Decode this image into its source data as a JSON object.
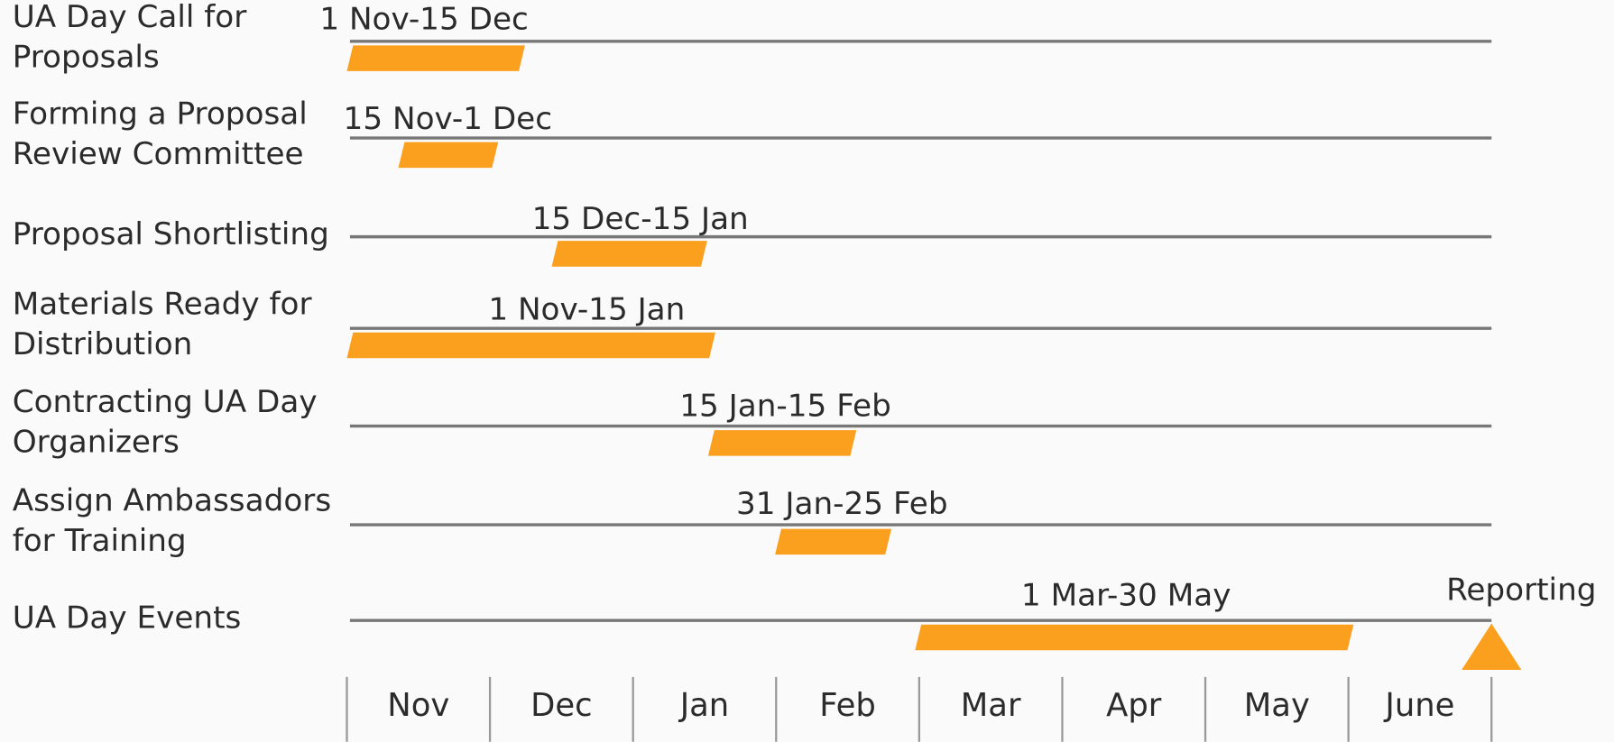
{
  "tasks": [
    {
      "name": [
        "UA Day Call for",
        "Proposals"
      ],
      "range": "1 Nov-15 Dec"
    },
    {
      "name": [
        "Forming a Proposal",
        "Review Committee"
      ],
      "range": "15 Nov-1 Dec"
    },
    {
      "name": [
        "Proposal Shortlisting"
      ],
      "range": "15 Dec-15 Jan"
    },
    {
      "name": [
        "Materials Ready for",
        "Distribution"
      ],
      "range": "1 Nov-15 Jan"
    },
    {
      "name": [
        "Contracting UA Day",
        "Organizers"
      ],
      "range": "15 Jan-15 Feb"
    },
    {
      "name": [
        "Assign Ambassadors",
        "for Training"
      ],
      "range": "31 Jan-25 Feb"
    },
    {
      "name": [
        "UA Day Events"
      ],
      "range": "1 Mar-30 May"
    }
  ],
  "milestone": "Reporting",
  "months": [
    "Nov",
    "Dec",
    "Jan",
    "Feb",
    "Mar",
    "Apr",
    "May",
    "June"
  ]
}
